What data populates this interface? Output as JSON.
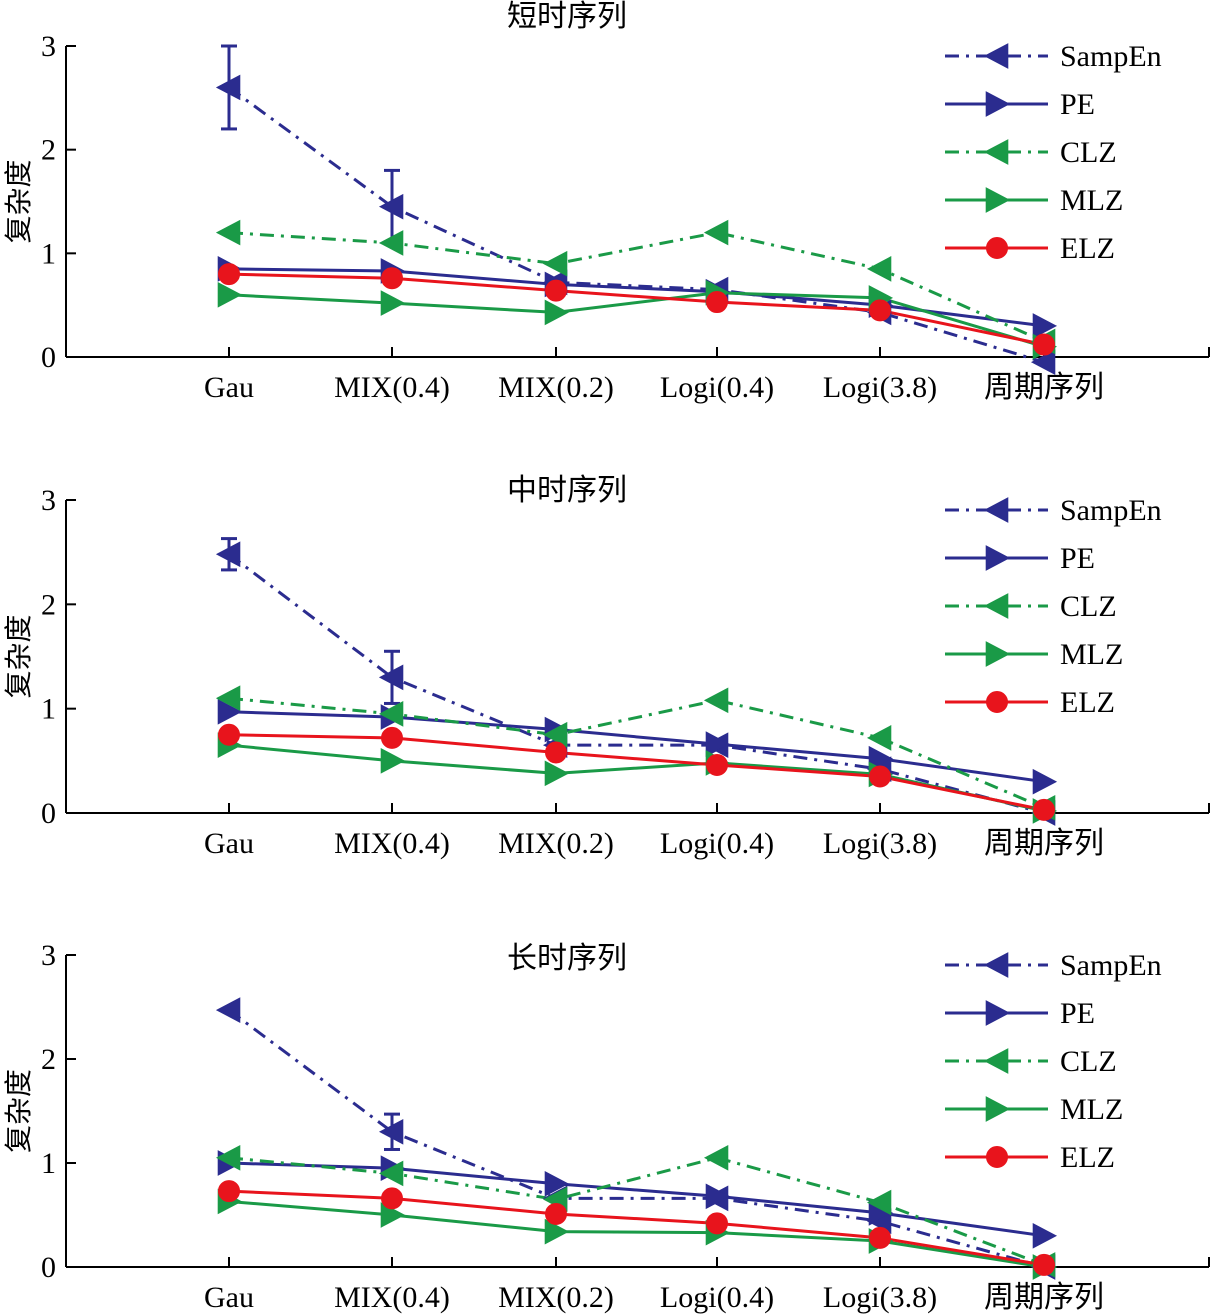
{
  "colors": {
    "SampEn": "#2b2c8f",
    "PE": "#2b2c8f",
    "CLZ": "#1a9a47",
    "MLZ": "#1a9a47",
    "ELZ": "#e8141c"
  },
  "chart_data": [
    {
      "type": "line",
      "title": "短时序列",
      "ylabel": "复杂度",
      "xlabel": "",
      "categories": [
        "Gau",
        "MIX(0.4)",
        "MIX(0.2)",
        "Logi(0.4)",
        "Logi(3.8)",
        "周期序列"
      ],
      "ylim": [
        0,
        3
      ],
      "yticks": [
        "0",
        "1",
        "2",
        "3"
      ],
      "legend_position": "top-right",
      "series": [
        {
          "name": "SampEn",
          "style": "dashdot",
          "marker": "triangle-left",
          "color": "#2b2c8f",
          "values": [
            2.6,
            1.45,
            0.72,
            0.65,
            0.43,
            -0.05
          ],
          "errors": [
            0.4,
            0.35,
            null,
            null,
            null,
            null
          ]
        },
        {
          "name": "PE",
          "style": "solid",
          "marker": "triangle-right",
          "color": "#2b2c8f",
          "values": [
            0.85,
            0.83,
            0.7,
            0.63,
            0.5,
            0.3
          ]
        },
        {
          "name": "CLZ",
          "style": "dashdot",
          "marker": "triangle-left",
          "color": "#1a9a47",
          "values": [
            1.2,
            1.1,
            0.9,
            1.2,
            0.85,
            0.15
          ]
        },
        {
          "name": "MLZ",
          "style": "solid",
          "marker": "triangle-right",
          "color": "#1a9a47",
          "values": [
            0.6,
            0.52,
            0.43,
            0.62,
            0.57,
            0.1
          ]
        },
        {
          "name": "ELZ",
          "style": "solid",
          "marker": "circle",
          "color": "#e8141c",
          "values": [
            0.8,
            0.76,
            0.64,
            0.53,
            0.45,
            0.12
          ]
        }
      ]
    },
    {
      "type": "line",
      "title": "中时序列",
      "ylabel": "复杂度",
      "xlabel": "",
      "categories": [
        "Gau",
        "MIX(0.4)",
        "MIX(0.2)",
        "Logi(0.4)",
        "Logi(3.8)",
        "周期序列"
      ],
      "ylim": [
        0,
        3
      ],
      "yticks": [
        "0",
        "1",
        "2",
        "3"
      ],
      "legend_position": "top-right",
      "series": [
        {
          "name": "SampEn",
          "style": "dashdot",
          "marker": "triangle-left",
          "color": "#2b2c8f",
          "values": [
            2.48,
            1.3,
            0.65,
            0.65,
            0.42,
            0.0
          ],
          "errors": [
            0.15,
            0.25,
            null,
            null,
            null,
            null
          ]
        },
        {
          "name": "PE",
          "style": "solid",
          "marker": "triangle-right",
          "color": "#2b2c8f",
          "values": [
            0.97,
            0.92,
            0.8,
            0.66,
            0.52,
            0.3
          ]
        },
        {
          "name": "CLZ",
          "style": "dashdot",
          "marker": "triangle-left",
          "color": "#1a9a47",
          "values": [
            1.1,
            0.95,
            0.75,
            1.08,
            0.72,
            0.05
          ]
        },
        {
          "name": "MLZ",
          "style": "solid",
          "marker": "triangle-right",
          "color": "#1a9a47",
          "values": [
            0.65,
            0.5,
            0.38,
            0.48,
            0.37,
            0.02
          ]
        },
        {
          "name": "ELZ",
          "style": "solid",
          "marker": "circle",
          "color": "#e8141c",
          "values": [
            0.75,
            0.72,
            0.58,
            0.46,
            0.35,
            0.03
          ]
        }
      ]
    },
    {
      "type": "line",
      "title": "长时序列",
      "ylabel": "复杂度",
      "xlabel": "",
      "categories": [
        "Gau",
        "MIX(0.4)",
        "MIX(0.2)",
        "Logi(0.4)",
        "Logi(3.8)",
        "周期序列"
      ],
      "ylim": [
        0,
        3
      ],
      "yticks": [
        "0",
        "1",
        "2",
        "3"
      ],
      "legend_position": "top-right",
      "series": [
        {
          "name": "SampEn",
          "style": "dashdot",
          "marker": "triangle-left",
          "color": "#2b2c8f",
          "values": [
            2.47,
            1.3,
            0.66,
            0.66,
            0.44,
            0.0
          ],
          "errors": [
            null,
            0.17,
            null,
            null,
            null,
            null
          ]
        },
        {
          "name": "PE",
          "style": "solid",
          "marker": "triangle-right",
          "color": "#2b2c8f",
          "values": [
            1.0,
            0.95,
            0.8,
            0.68,
            0.52,
            0.3
          ]
        },
        {
          "name": "CLZ",
          "style": "dashdot",
          "marker": "triangle-left",
          "color": "#1a9a47",
          "values": [
            1.05,
            0.9,
            0.65,
            1.05,
            0.62,
            0.02
          ]
        },
        {
          "name": "MLZ",
          "style": "solid",
          "marker": "triangle-right",
          "color": "#1a9a47",
          "values": [
            0.63,
            0.5,
            0.34,
            0.33,
            0.25,
            0.0
          ]
        },
        {
          "name": "ELZ",
          "style": "solid",
          "marker": "circle",
          "color": "#e8141c",
          "values": [
            0.73,
            0.66,
            0.51,
            0.42,
            0.28,
            0.02
          ]
        }
      ]
    }
  ]
}
